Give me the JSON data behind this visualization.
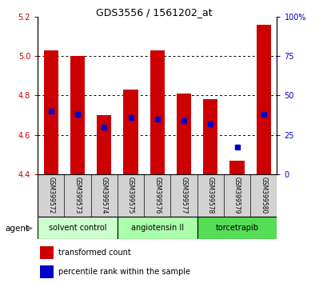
{
  "title": "GDS3556 / 1561202_at",
  "samples": [
    "GSM399572",
    "GSM399573",
    "GSM399574",
    "GSM399575",
    "GSM399576",
    "GSM399577",
    "GSM399578",
    "GSM399579",
    "GSM399580"
  ],
  "bar_bottoms": [
    4.4,
    4.4,
    4.4,
    4.4,
    4.4,
    4.4,
    4.4,
    4.4,
    4.4
  ],
  "bar_tops": [
    5.03,
    5.0,
    4.7,
    4.83,
    5.03,
    4.81,
    4.78,
    4.47,
    5.16
  ],
  "percentile_ranks": [
    40,
    38,
    30,
    36,
    35,
    34,
    32,
    17,
    38
  ],
  "bar_color": "#cc0000",
  "percentile_color": "#0000cc",
  "ylim_left": [
    4.4,
    5.2
  ],
  "ylim_right": [
    0,
    100
  ],
  "yticks_left": [
    4.4,
    4.6,
    4.8,
    5.0,
    5.2
  ],
  "yticks_right": [
    0,
    25,
    50,
    75,
    100
  ],
  "ytick_labels_right": [
    "0",
    "25",
    "50",
    "75",
    "100%"
  ],
  "groups": [
    {
      "label": "solvent control",
      "start": 0,
      "end": 3,
      "color": "#ccffcc"
    },
    {
      "label": "angiotensin II",
      "start": 3,
      "end": 6,
      "color": "#aaffaa"
    },
    {
      "label": "torcetrapib",
      "start": 6,
      "end": 9,
      "color": "#55dd55"
    }
  ],
  "agent_label": "agent",
  "legend_items": [
    {
      "label": "transformed count",
      "color": "#cc0000"
    },
    {
      "label": "percentile rank within the sample",
      "color": "#0000cc"
    }
  ],
  "tick_color_left": "#cc0000",
  "tick_color_right": "#0000cc",
  "bar_width": 0.55,
  "percentile_marker_size": 4,
  "grid_yticks": [
    4.6,
    4.8,
    5.0
  ]
}
